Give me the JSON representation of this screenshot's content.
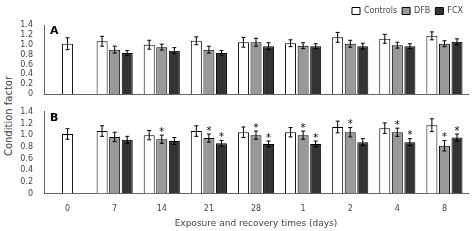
{
  "chart_data": [
    {
      "type": "bar",
      "title": "A",
      "ylabel": "Condition factor",
      "categories": [
        "0",
        "7",
        "14",
        "21",
        "28",
        "1",
        "2",
        "4",
        "8"
      ],
      "series": [
        {
          "name": "Controls",
          "color": "#ffffff",
          "values": [
            1.02,
            1.07,
            1.0,
            1.08,
            1.05,
            1.03,
            1.15,
            1.12,
            1.18
          ],
          "errors": [
            0.12,
            0.1,
            0.09,
            0.08,
            0.1,
            0.07,
            0.1,
            0.09,
            0.08
          ]
        },
        {
          "name": "DFB",
          "color": "#999999",
          "values": [
            null,
            0.9,
            0.95,
            0.9,
            1.05,
            0.98,
            1.02,
            0.99,
            1.02
          ],
          "errors": [
            null,
            0.07,
            0.06,
            0.07,
            0.08,
            0.06,
            0.07,
            0.06,
            0.06
          ]
        },
        {
          "name": "FCX",
          "color": "#333333",
          "values": [
            null,
            0.83,
            0.88,
            0.83,
            0.97,
            0.97,
            0.97,
            0.97,
            1.06
          ],
          "errors": [
            null,
            0.05,
            0.06,
            0.05,
            0.07,
            0.05,
            0.06,
            0.05,
            0.06
          ]
        }
      ],
      "ylim": [
        0,
        1.4
      ],
      "yticks": [
        0,
        0.2,
        0.4,
        0.6,
        0.8,
        {
          "value": 1,
          "label": "1.0"
        },
        1.2,
        1.4
      ],
      "grid": false,
      "legend": "upper right",
      "tick_labels": "y"
    },
    {
      "type": "bar",
      "title": "B",
      "xlabel": "Exposure and recovery times (days)",
      "categories": [
        "0",
        "7",
        "14",
        "21",
        "28",
        "1",
        "2",
        "4",
        "8"
      ],
      "series": [
        {
          "name": "Controls",
          "color": "#ffffff",
          "values": [
            1.02,
            1.07,
            1.0,
            1.07,
            1.05,
            1.05,
            1.14,
            1.12,
            1.17
          ],
          "errors": [
            0.09,
            0.09,
            0.08,
            0.09,
            0.09,
            0.08,
            0.1,
            0.09,
            0.11
          ]
        },
        {
          "name": "DFB",
          "color": "#999999",
          "values": [
            null,
            0.97,
            0.93,
            0.95,
            1.0,
            1.0,
            1.05,
            1.05,
            0.82
          ],
          "errors": [
            null,
            0.08,
            0.07,
            0.07,
            0.07,
            0.07,
            0.08,
            0.07,
            0.09
          ]
        },
        {
          "name": "FCX",
          "color": "#333333",
          "values": [
            null,
            0.92,
            0.9,
            0.86,
            0.85,
            0.85,
            0.88,
            0.88,
            0.96
          ],
          "errors": [
            null,
            0.06,
            0.06,
            0.05,
            0.05,
            0.05,
            0.06,
            0.06,
            0.06
          ]
        }
      ],
      "annotations": [
        {
          "text": "*",
          "series": "DFB",
          "category": "14"
        },
        {
          "text": "*",
          "series": "DFB",
          "category": "21"
        },
        {
          "text": "*",
          "series": "DFB",
          "category": "28"
        },
        {
          "text": "*",
          "series": "DFB",
          "category": "1"
        },
        {
          "text": "*",
          "series": "DFB",
          "category": "2"
        },
        {
          "text": "*",
          "series": "DFB",
          "category": "4"
        },
        {
          "text": "*",
          "series": "DFB",
          "category": "8"
        },
        {
          "text": "*",
          "series": "FCX",
          "category": "21"
        },
        {
          "text": "*",
          "series": "FCX",
          "category": "28"
        },
        {
          "text": "*",
          "series": "FCX",
          "category": "1"
        },
        {
          "text": "*",
          "series": "FCX",
          "category": "4"
        },
        {
          "text": "*",
          "series": "FCX",
          "category": "8"
        }
      ],
      "ylim": [
        0,
        1.4
      ],
      "yticks": [
        0,
        0.2,
        0.4,
        0.6,
        0.8,
        {
          "value": 1,
          "label": "1.0"
        },
        1.2,
        1.4
      ],
      "grid": false
    }
  ]
}
